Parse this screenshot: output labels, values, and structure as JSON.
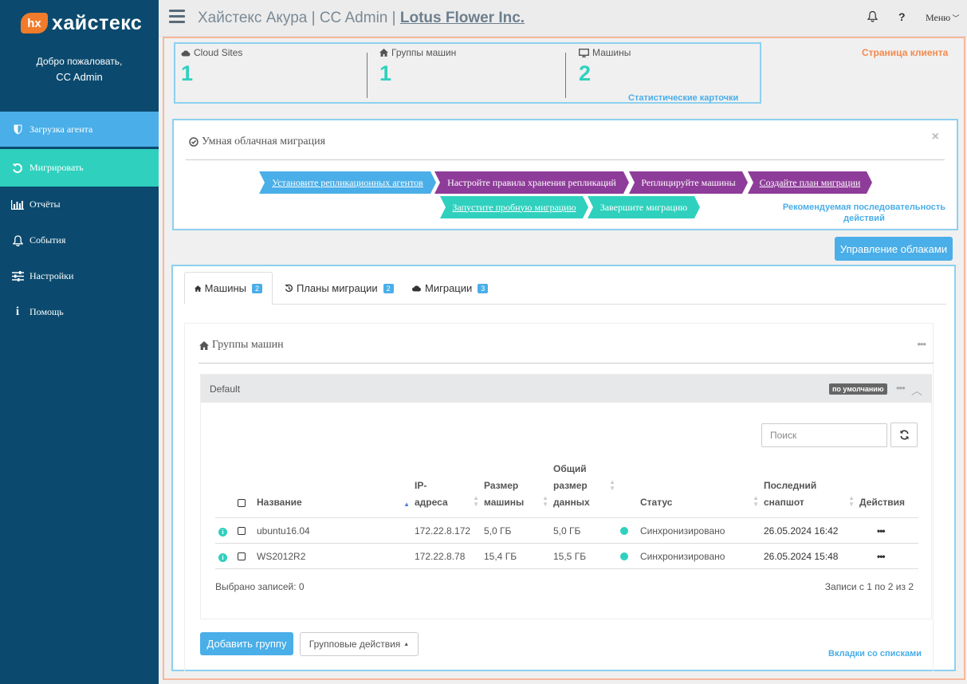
{
  "brand": {
    "badge": "hx",
    "name": "хайстекс"
  },
  "welcome": {
    "greeting": "Добро пожаловать,",
    "user": "CC Admin"
  },
  "nav": [
    {
      "label": "Загрузка агента",
      "icon": "shield-icon"
    },
    {
      "label": "Мигрировать",
      "icon": "refresh-icon"
    },
    {
      "label": "Отчёты",
      "icon": "bar-chart-icon"
    },
    {
      "label": "События",
      "icon": "bell-icon"
    },
    {
      "label": "Настройки",
      "icon": "sliders-icon"
    },
    {
      "label": "Помощь",
      "icon": "info-icon"
    }
  ],
  "header": {
    "title_prefix": "Хайстекс Акура | CC Admin | ",
    "company": "Lotus Flower Inc.",
    "help": "?",
    "menu": "Меню"
  },
  "client_page_label": "Страница клиента",
  "stats": {
    "items": [
      {
        "label": "Cloud Sites",
        "value": "1",
        "icon": "cloud-icon"
      },
      {
        "label": "Группы машин",
        "value": "1",
        "icon": "home-icon"
      },
      {
        "label": "Машины",
        "value": "2",
        "icon": "monitor-icon"
      }
    ],
    "caption": "Статистические карточки"
  },
  "wizard": {
    "title": "Умная облачная миграция",
    "close": "×",
    "steps": [
      "Установите репликационных агентов",
      "Настройте правила хранения репликаций",
      "Реплицируйте машины",
      "Создайте план миграции",
      "Запустите пробную миграцию",
      "Завершите миграцию"
    ],
    "hint": "Рекомендуемая последовательность действий"
  },
  "manage_clouds_button": "Управление облаками",
  "tabs": [
    {
      "label": "Машины",
      "count": "2",
      "icon": "home-icon"
    },
    {
      "label": "Планы миграции",
      "count": "2",
      "icon": "history-icon"
    },
    {
      "label": "Миграции",
      "count": "3",
      "icon": "cloud-icon"
    }
  ],
  "groups": {
    "title": "Группы машин",
    "dots": "•••",
    "default_group": {
      "name": "Default",
      "badge": "по умолчанию",
      "search_placeholder": "Поиск",
      "columns": {
        "name": "Название",
        "ip_line1": "IP-",
        "ip_line2": "адреса",
        "size_line1": "Размер",
        "size_line2": "машины",
        "total_line1": "Общий",
        "total_line2": "размер",
        "total_line3": "данных",
        "status": "Статус",
        "snapshot_line1": "Последний",
        "snapshot_line2": "снапшот",
        "actions": "Действия"
      },
      "rows": [
        {
          "name": "ubuntu16.04",
          "ip": "172.22.8.172",
          "size": "5,0 ГБ",
          "total": "5,0 ГБ",
          "status": "Синхронизировано",
          "snapshot": "26.05.2024 16:42",
          "actions": "•••",
          "info": "i"
        },
        {
          "name": "WS2012R2",
          "ip": "172.22.8.78",
          "size": "15,4 ГБ",
          "total": "15,5 ГБ",
          "status": "Синхронизировано",
          "snapshot": "26.05.2024 15:48",
          "actions": "•••",
          "info": "i"
        }
      ],
      "selected": "Выбрано записей: 0",
      "records": "Записи с 1 по 2 из 2"
    }
  },
  "add_group_button": "Добавить группу",
  "group_actions_button": "Групповые действия",
  "tabs_caption": "Вкладки со списками",
  "colors": {
    "sidebar": "#0b4a6e",
    "accent_blue": "#4aaee8",
    "accent_teal": "#2fd1be",
    "accent_purple": "#8e3c99",
    "accent_orange": "#f5894c"
  }
}
